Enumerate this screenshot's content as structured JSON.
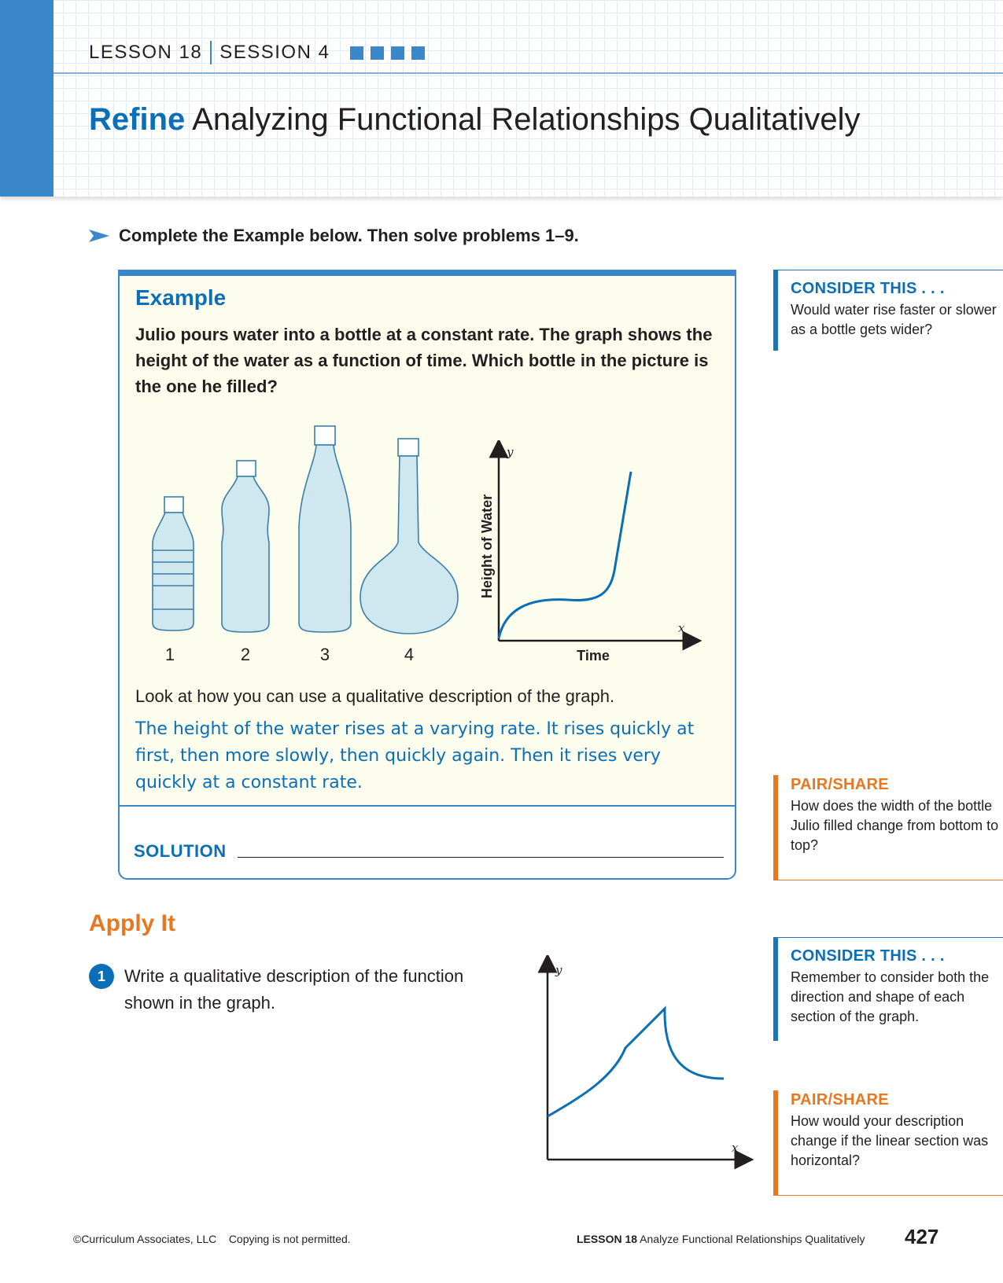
{
  "header": {
    "lesson": "LESSON 18",
    "session": "SESSION 4",
    "title_bold": "Refine",
    "title_rest": "Analyzing Functional Relationships Qualitatively"
  },
  "instruction": "Complete the Example below. Then solve problems 1–9.",
  "example": {
    "heading": "Example",
    "question": "Julio pours water into a bottle at a constant rate. The graph shows the height of the water as a function of time. Which bottle in the picture is the one he filled?",
    "bottle_labels": [
      "1",
      "2",
      "3",
      "4"
    ],
    "graph": {
      "y_label": "Height of Water",
      "x_label": "Time",
      "y_var": "y",
      "x_var": "x"
    },
    "look_text": "Look at how you can use a qualitative description of the graph.",
    "answer_text": "The height of the water rises at a varying rate. It rises quickly at first, then more slowly, then quickly again. Then it rises very quickly at a constant rate.",
    "solution_label": "SOLUTION"
  },
  "side_notes": [
    {
      "title": "CONSIDER THIS . . .",
      "body": "Would water rise faster or slower as a bottle gets wider?",
      "color": "#1b75bb"
    },
    {
      "title": "PAIR/SHARE",
      "body": "How does the width of the bottle Julio filled change from bottom to top?",
      "color": "#e87722"
    },
    {
      "title": "CONSIDER THIS . . .",
      "body": "Remember to consider both the direction and shape of each section of the graph.",
      "color": "#1b75bb"
    },
    {
      "title": "PAIR/SHARE",
      "body": "How would your description change if the linear section was horizontal?",
      "color": "#e87722"
    }
  ],
  "apply_it": {
    "heading": "Apply It",
    "problem_number": "1",
    "problem_text": "Write a qualitative description of the function shown in the graph.",
    "graph": {
      "y_var": "y",
      "x_var": "x"
    }
  },
  "footer": {
    "copyright": "©Curriculum Associates, LLC    Copying is not permitted.",
    "lesson": "LESSON 18",
    "lesson_title": "Analyze Functional Relationships Qualitatively",
    "page_number": "427"
  },
  "colors": {
    "accent_blue": "#0b6fb8",
    "tab_blue": "#3a87c9",
    "accent_orange": "#e87722",
    "example_bg": "#fdfdee"
  }
}
